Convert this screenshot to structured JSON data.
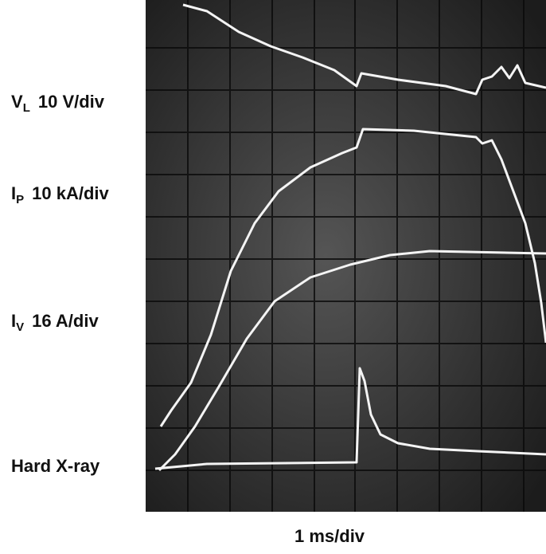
{
  "labels": [
    {
      "symbol": "V",
      "subscript": "L",
      "scale": "10 V/div"
    },
    {
      "symbol": "I",
      "subscript": "P",
      "scale": "10 kA/div"
    },
    {
      "symbol": "I",
      "subscript": "V",
      "scale": "16 A/div"
    },
    {
      "symbol": "Hard X-ray"
    }
  ],
  "time_scale": "1 ms/div"
}
